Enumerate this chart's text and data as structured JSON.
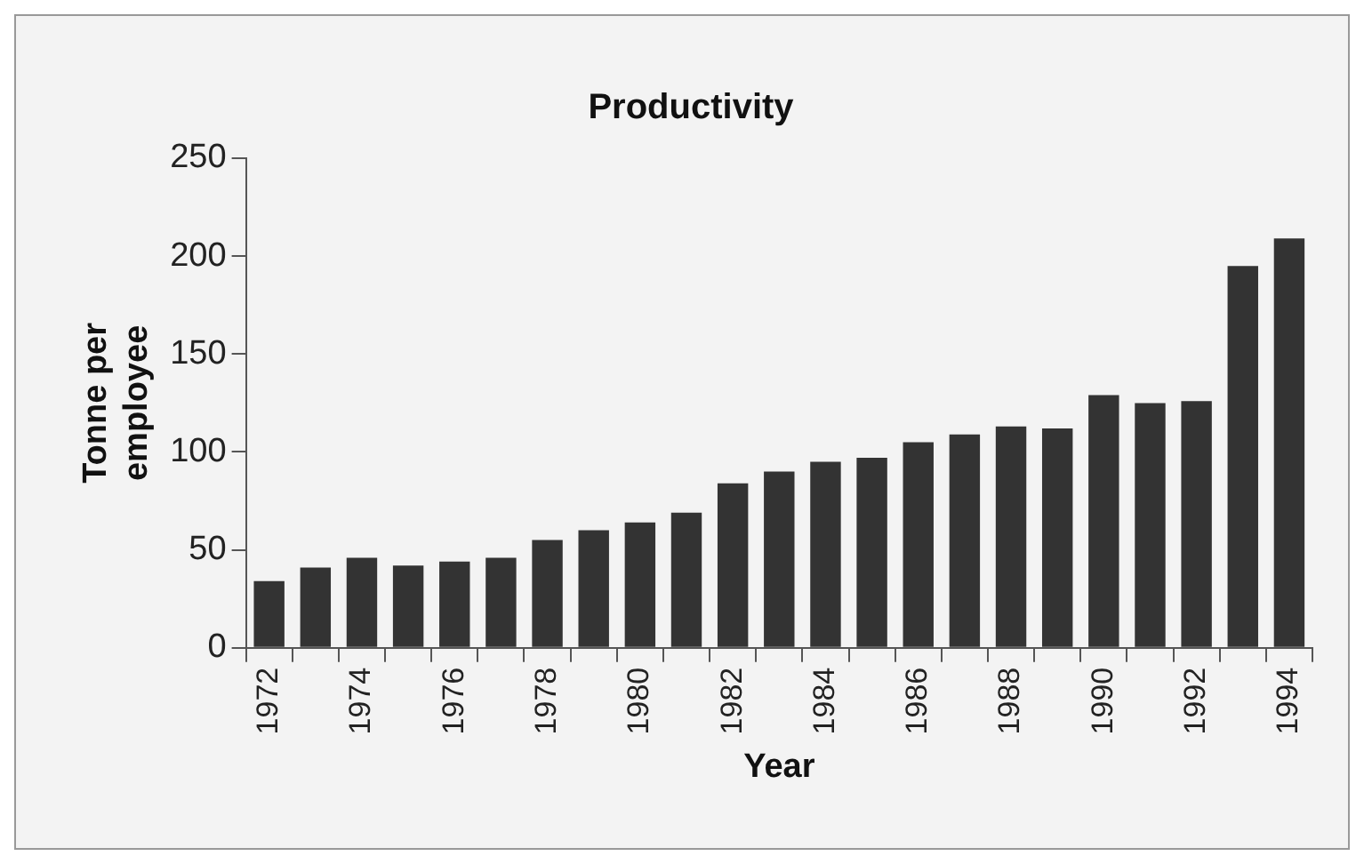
{
  "chart_data": {
    "type": "bar",
    "title": "Productivity",
    "xlabel": "Year",
    "ylabel": "Tonne per employee",
    "categories": [
      "1972",
      null,
      "1974",
      null,
      "1976",
      null,
      "1978",
      null,
      "1980",
      null,
      "1982",
      null,
      "1984",
      null,
      "1986",
      null,
      "1988",
      null,
      "1990",
      null,
      "1992",
      null,
      "1994"
    ],
    "values": [
      34,
      41,
      46,
      42,
      44,
      46,
      55,
      60,
      64,
      69,
      84,
      90,
      95,
      97,
      105,
      109,
      113,
      112,
      129,
      125,
      126,
      195,
      209
    ],
    "color": "#333333",
    "ylim": [
      0,
      250
    ],
    "yticks": [
      0,
      50,
      100,
      150,
      200,
      250
    ],
    "grid": false,
    "legend": false
  }
}
